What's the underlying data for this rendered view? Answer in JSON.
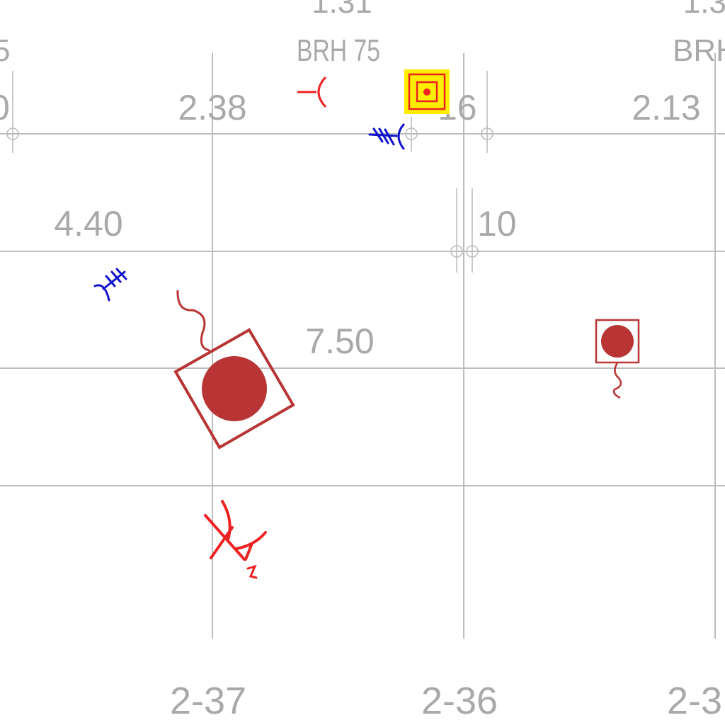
{
  "top_partial": {
    "left": "1.31",
    "right": "1.3"
  },
  "brh": {
    "left": "BRH 75",
    "right": "BRH"
  },
  "edge_left": {
    "top": "5",
    "mid": "0"
  },
  "dimensions": {
    "d238": "2.38",
    "d16": "16",
    "d213": "2.13",
    "d440": "4.40",
    "d10": "10",
    "d750": "7.50"
  },
  "axes": {
    "a1": "2-37",
    "a2": "2-36",
    "a3": "2-3"
  },
  "icons": [
    "pipe-end-marker-icon",
    "blue-fitting-icon",
    "highlighted-target-marker-icon",
    "blue-fitting-icon",
    "rotated-device-with-cable-icon",
    "device-with-cable-icon",
    "red-branch-marker-icon"
  ],
  "colors": {
    "grid": "#bdbdbd",
    "label": "#a9a9a9",
    "marker_red": "#ee2222",
    "fitting_blue": "#1111cc",
    "device": "#b93434",
    "highlight_fill": "#ffee00"
  }
}
